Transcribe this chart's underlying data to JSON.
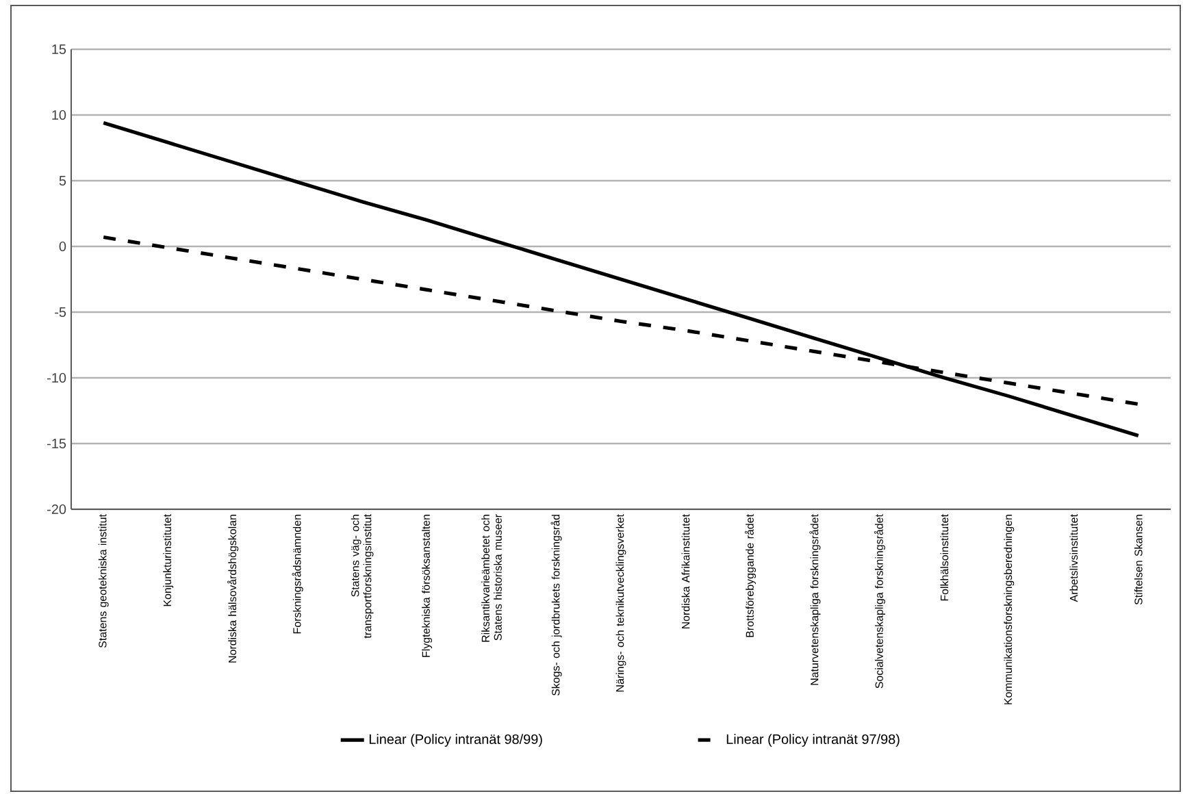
{
  "chart_data": {
    "type": "line",
    "categories": [
      "Statens geotekniska institut",
      "Konjunkturinstitutet",
      "Nordiska hälsovårdshögskolan",
      "Forskningsrådsnämnden",
      "Statens väg- och transportforskningsinstitut",
      "Flygtekniska försöksanstalten",
      "Riksantikvarieämbetet och Statens historiska museer",
      "Skogs- och jordbrukets forskningsråd",
      "Närings- och teknikutvecklingsverket",
      "Nordiska Afrikainstitutet",
      "Brottsförebyggande rådet",
      "Naturvetenskapliga forskningsrådet",
      "Socialvetenskapliga forskningsrådet",
      "Folkhälsoinstitutet",
      "Kommunikationsforskningsberedningen",
      "Arbetslivsinstitutet",
      "Stiftelsen Skansen"
    ],
    "series": [
      {
        "name": "Linear (Policy intranät 98/99)",
        "color": "#000000",
        "line_style": "solid",
        "values": [
          9.4,
          7.9,
          6.4,
          4.9,
          3.4,
          2.0,
          0.5,
          -1.0,
          -2.5,
          -4.0,
          -5.5,
          -7.0,
          -8.5,
          -10.0,
          -11.4,
          -12.9,
          -14.4
        ]
      },
      {
        "name": "Linear (Policy intranät 97/98)",
        "color": "#000000",
        "line_style": "dashed",
        "values": [
          0.7,
          -0.1,
          -0.9,
          -1.7,
          -2.5,
          -3.3,
          -4.1,
          -4.9,
          -5.7,
          -6.4,
          -7.2,
          -8.0,
          -8.8,
          -9.6,
          -10.4,
          -11.2,
          -12.0
        ]
      }
    ],
    "ylim": [
      -20,
      15
    ],
    "yticks": [
      -20,
      -15,
      -10,
      -5,
      0,
      5,
      10,
      15
    ],
    "grid": "y",
    "legend": "bottom",
    "marker": "none"
  }
}
